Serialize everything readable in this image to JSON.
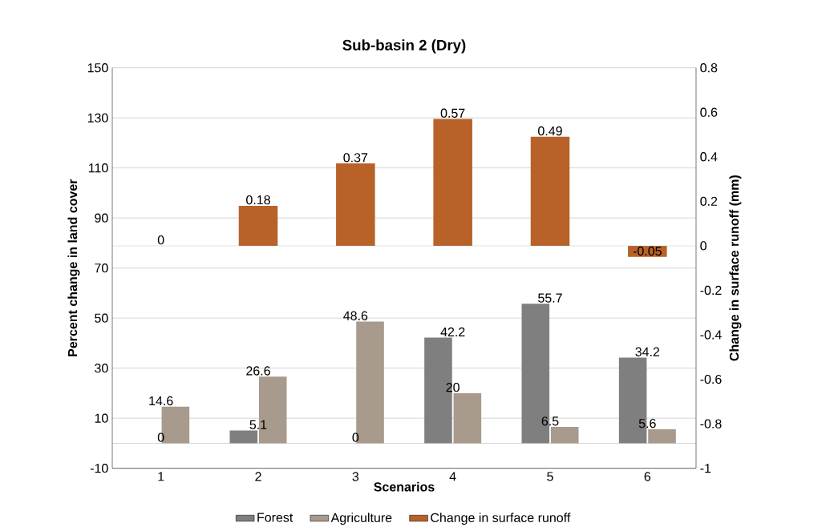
{
  "chart_data": {
    "type": "bar",
    "title": "Sub-basin 2 (Dry)",
    "xlabel": "Scenarios",
    "ylabel": "Percent change in land cover",
    "y2label": "Change in surface runoff (mm)",
    "categories": [
      "1",
      "2",
      "3",
      "4",
      "5",
      "6"
    ],
    "series": [
      {
        "name": "Forest",
        "color": "#7f7f7f",
        "values": [
          0,
          5.1,
          0,
          42.2,
          55.7,
          34.2
        ]
      },
      {
        "name": "Agriculture",
        "color": "#a89a8c",
        "values": [
          14.6,
          26.6,
          48.6,
          20,
          6.5,
          5.6
        ]
      },
      {
        "name": "Change in surface runoff",
        "color": "#b8622a",
        "axis": "y2",
        "values": [
          0,
          0.18,
          0.37,
          0.57,
          0.49,
          -0.05
        ]
      }
    ],
    "ylim": [
      -10,
      150
    ],
    "yticks": [
      -10,
      10,
      30,
      50,
      70,
      90,
      110,
      130,
      150
    ],
    "y2lim": [
      -1,
      0.8
    ],
    "y2ticks": [
      -1,
      -0.8,
      -0.6,
      -0.4,
      -0.2,
      0,
      0.2,
      0.4,
      0.6,
      0.8
    ],
    "data_labels": true,
    "grid": "y",
    "legend": "bottom"
  }
}
